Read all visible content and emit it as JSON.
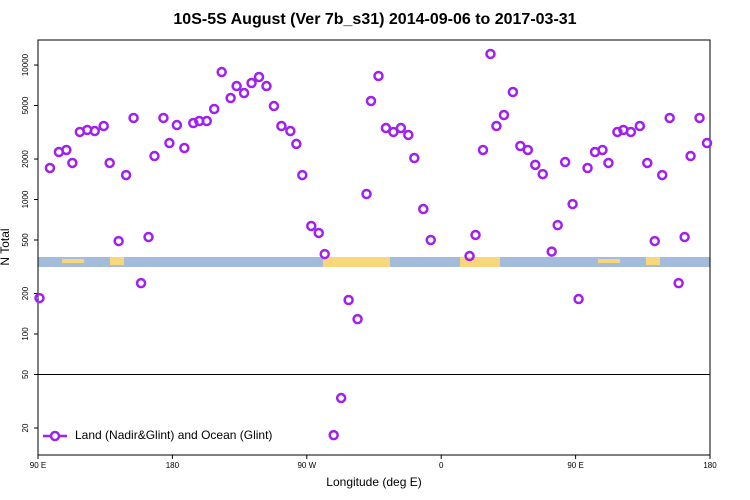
{
  "chart_data": {
    "type": "scatter",
    "title": "10S-5S August (Ver 7b_s31)   2014-09-06 to 2017-03-31",
    "x_label": "Longitude (deg E)",
    "y_label": "N Total",
    "log_y": true,
    "hline": 50,
    "legend": "bottom-left",
    "xlim": [
      90,
      540
    ],
    "xticks": [
      {
        "value": 90,
        "label": "90 E"
      },
      {
        "value": 180,
        "label": "180"
      },
      {
        "value": 270,
        "label": "90 W"
      },
      {
        "value": 360,
        "label": "0"
      },
      {
        "value": 450,
        "label": "90 E"
      },
      {
        "value": 540,
        "label": "180"
      }
    ],
    "ylim": [
      12.6,
      15350
    ],
    "yticks": [
      20,
      50,
      100,
      200,
      500,
      1000,
      2000,
      5000,
      10000
    ],
    "series": [
      {
        "name": "Land (Nadir&Glint) and Ocean (Glint)",
        "color": "#a020f0",
        "x": [
          91,
          98,
          104,
          109,
          113,
          118,
          123,
          128,
          134,
          138,
          144,
          149,
          154,
          159,
          164,
          168,
          174,
          178,
          183,
          188,
          194,
          198,
          203,
          208,
          213,
          219,
          223,
          228,
          233,
          238,
          243,
          248,
          253,
          259,
          263,
          267,
          273,
          278,
          282,
          288,
          293,
          298,
          304,
          310,
          313,
          318,
          323,
          328,
          333,
          338,
          342,
          348,
          353,
          379,
          383,
          388,
          393,
          397,
          402,
          408,
          413,
          418,
          423,
          428,
          434,
          438,
          443,
          448,
          452,
          458,
          463,
          468,
          472,
          478,
          482,
          487,
          493,
          498,
          503,
          508,
          513,
          519,
          523,
          527,
          533,
          538
        ],
        "values": [
          185,
          1715,
          2255,
          2335,
          1870,
          3180,
          3290,
          3230,
          3520,
          1870,
          491,
          1520,
          4040,
          239,
          526,
          2105,
          4040,
          2630,
          3580,
          2415,
          3705,
          3835,
          3835,
          4710,
          8870,
          5685,
          6980,
          6190,
          7350,
          8145,
          6980,
          4955,
          3520,
          3230,
          2590,
          1520,
          636,
          564,
          393,
          17.7,
          33.4,
          179,
          129,
          1099,
          5400,
          8290,
          3400,
          3180,
          3400,
          3020,
          2035,
          850,
          500,
          380,
          545,
          2335,
          12090,
          3520,
          4250,
          6300,
          2500,
          2335,
          1810,
          1545,
          410,
          645,
          1900,
          925,
          182,
          1715,
          2255,
          2335,
          1870,
          3180,
          3290,
          3180,
          3520,
          1870,
          491,
          1520,
          4040,
          239,
          526,
          2105,
          4040,
          2630
        ]
      }
    ]
  }
}
